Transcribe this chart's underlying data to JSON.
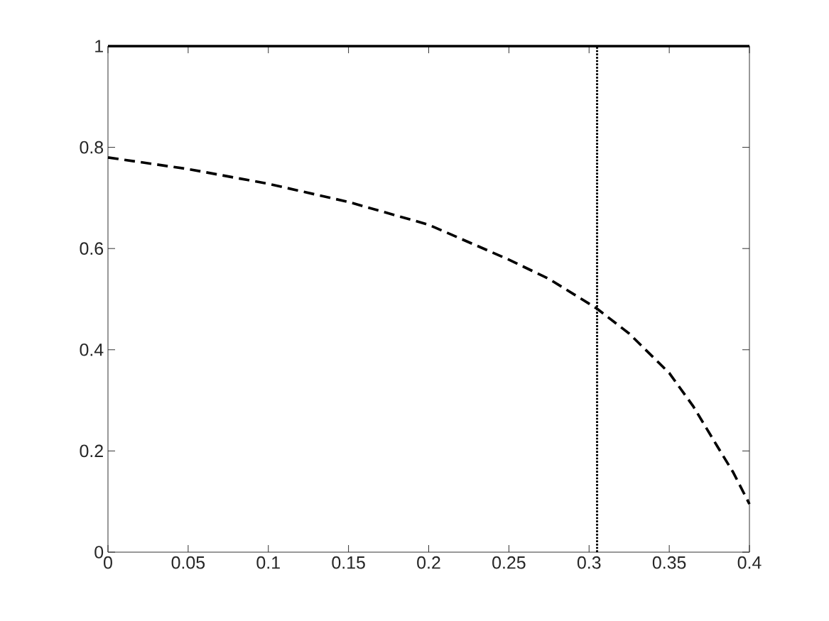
{
  "chart_data": {
    "type": "line",
    "x": [
      0,
      0.05,
      0.1,
      0.15,
      0.2,
      0.25,
      0.275,
      0.3,
      0.305,
      0.325,
      0.35,
      0.365,
      0.38,
      0.39,
      0.4
    ],
    "series": [
      {
        "color": "#000000",
        "line_style": "dashed",
        "values": [
          0.78,
          0.757,
          0.728,
          0.692,
          0.647,
          0.578,
          0.54,
          0.491,
          0.481,
          0.432,
          0.354,
          0.288,
          0.209,
          0.157,
          0.095
        ]
      }
    ],
    "ref_lines": [
      {
        "axis": "y",
        "value": 1,
        "color": "#000000",
        "line_style": "solid"
      },
      {
        "axis": "x",
        "value": 0.305,
        "color": "#000000",
        "line_style": "dotted"
      }
    ],
    "xlim": [
      0,
      0.4
    ],
    "ylim": [
      0,
      1
    ],
    "xticks": [
      0,
      0.05,
      0.1,
      0.15,
      0.2,
      0.25,
      0.3,
      0.35,
      0.4
    ],
    "yticks": [
      0,
      0.2,
      0.4,
      0.6,
      0.8,
      1
    ],
    "grid": false,
    "marker": "none"
  }
}
